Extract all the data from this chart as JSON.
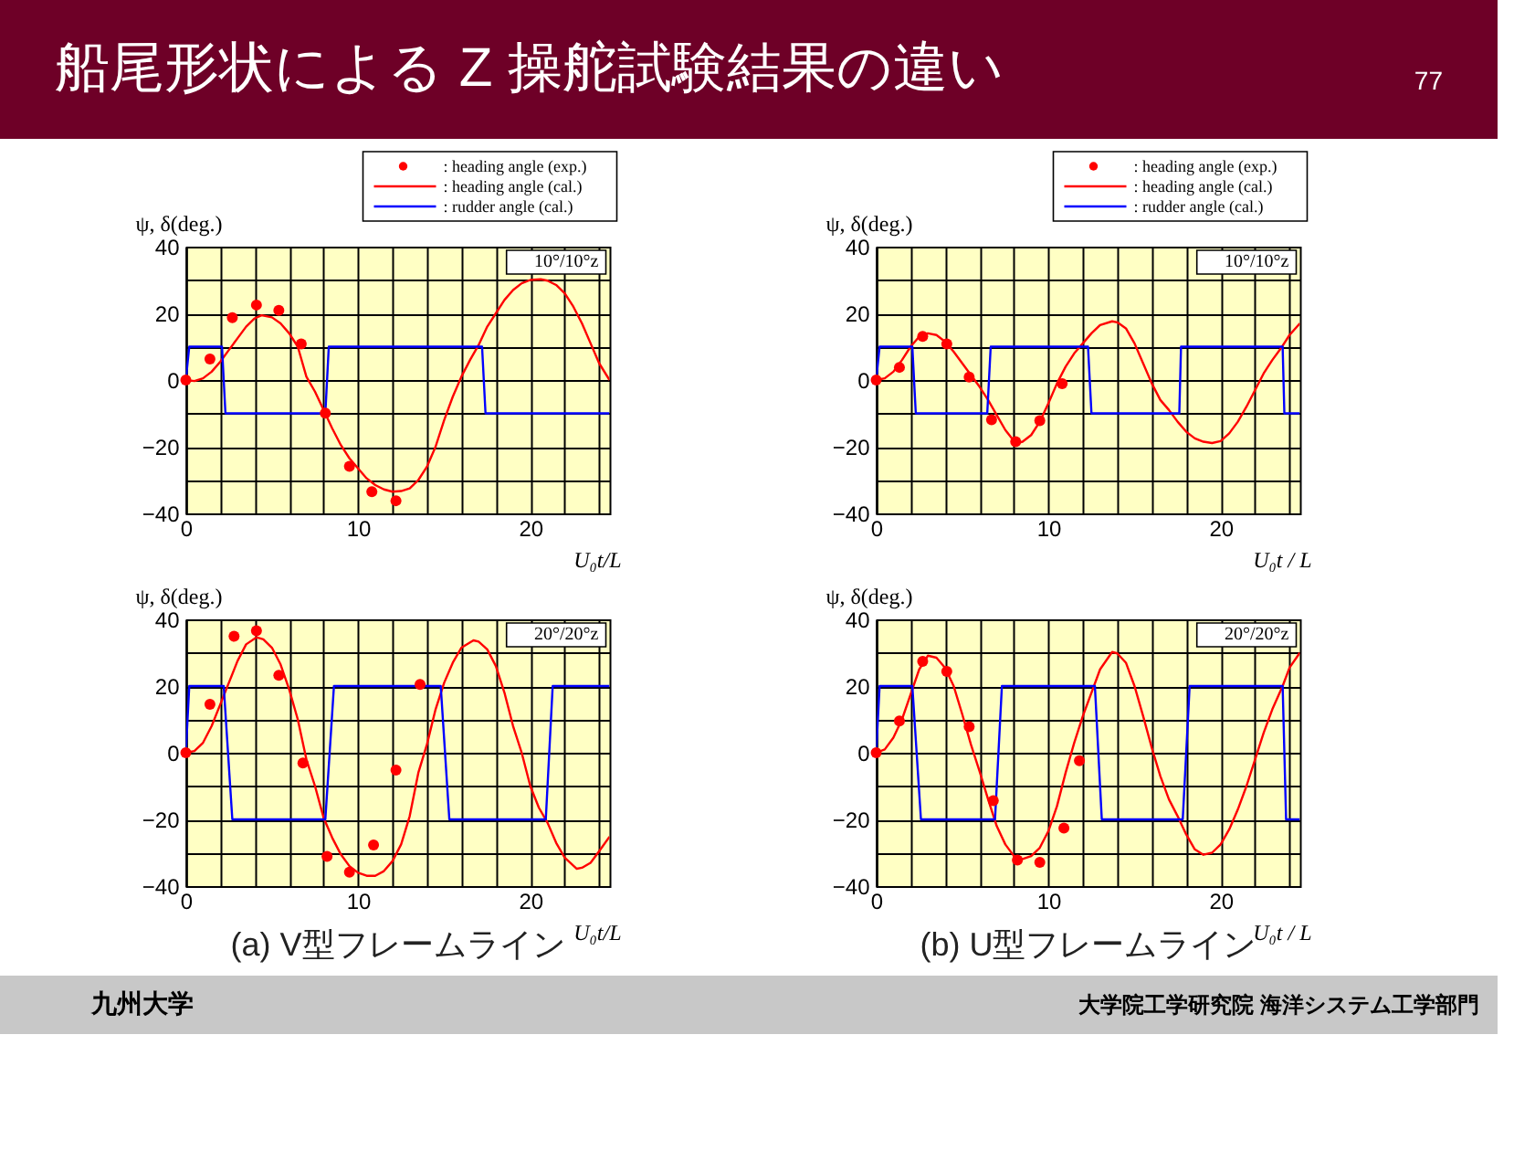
{
  "chart_data": [
    {
      "type": "line",
      "title": "船尾形状による Z 操舵試験結果の違い",
      "xlabel": "U₀t/L",
      "ylabel": "ψ, δ(deg.)",
      "xlim": [
        0,
        24.6
      ],
      "ylim": [
        -40,
        40
      ],
      "xticks": [
        0,
        {
          "value": 2,
          "label": null
        },
        {
          "value": 4,
          "label": null
        },
        {
          "value": 6,
          "label": null
        },
        {
          "value": 8,
          "label": null
        },
        10,
        {
          "value": 12,
          "label": null
        },
        {
          "value": 14,
          "label": null
        },
        {
          "value": 16,
          "label": null
        },
        {
          "value": 18,
          "label": null
        },
        20,
        {
          "value": 22,
          "label": null
        },
        {
          "value": 24,
          "label": null
        }
      ],
      "yticks": [
        -40,
        {
          "value": -30,
          "label": null
        },
        -20,
        {
          "value": -10,
          "label": null
        },
        0,
        {
          "value": 10,
          "label": null
        },
        20,
        {
          "value": 30,
          "label": null
        },
        40
      ],
      "grid": true,
      "legend": "top right",
      "annotations": [
        "10°/10°z",
        "77"
      ],
      "series": [
        {
          "name": ": heading angle (exp.)",
          "type": "scatter",
          "marker": "circle",
          "color": "#ff0000",
          "x": [
            0,
            1.4,
            2.7,
            4.1,
            5.4,
            6.7,
            8.1,
            9.5,
            10.8,
            12.2
          ],
          "values": [
            0,
            6.3,
            18.7,
            22.5,
            20.9,
            10.8,
            -9.9,
            -25.9,
            -33.5,
            -36.2
          ]
        },
        {
          "name": ": heading angle (cal.)",
          "type": "line",
          "color": "#ff0000",
          "x": [
            0,
            0.5,
            1,
            1.5,
            2,
            2.5,
            3,
            3.5,
            4,
            4.4,
            5,
            5.5,
            6,
            6.5,
            7,
            7.5,
            8,
            8.5,
            9,
            9.5,
            10,
            10.5,
            11,
            11.5,
            12,
            12.5,
            13,
            13.5,
            14,
            14.5,
            15,
            15.5,
            16,
            16.5,
            17,
            17.5,
            18,
            18.5,
            19,
            19.5,
            20,
            20.6,
            21,
            21.5,
            22,
            22.5,
            23,
            23.5,
            24,
            24.6
          ],
          "values": [
            0,
            -0.3,
            0.5,
            2.5,
            5.5,
            9,
            12.5,
            16,
            18.5,
            19.4,
            18.8,
            17,
            14,
            10,
            1,
            -3.5,
            -9,
            -14.5,
            -19.5,
            -23.5,
            -26.5,
            -29.5,
            -31.5,
            -32.8,
            -33.5,
            -33.3,
            -32.5,
            -30,
            -26,
            -20,
            -12,
            -5,
            1,
            6,
            10.5,
            16,
            20,
            24,
            27,
            29,
            30,
            30.2,
            29.8,
            28.5,
            26,
            22,
            17,
            11,
            5,
            0
          ]
        },
        {
          "name": ": rudder angle (cal.)",
          "type": "line",
          "color": "#0000ff",
          "x": [
            0,
            0.2,
            2.1,
            2.3,
            8.1,
            8.3,
            17.2,
            17.4,
            24.6
          ],
          "values": [
            0,
            10,
            10,
            -10,
            -10,
            10,
            10,
            -10,
            -10
          ]
        }
      ]
    },
    {
      "type": "line",
      "xlabel": "U₀t / L",
      "ylabel": "ψ, δ(deg.)",
      "xlim": [
        0,
        24.6
      ],
      "ylim": [
        -40,
        40
      ],
      "xticks": [
        0,
        {
          "value": 2,
          "label": null
        },
        {
          "value": 4,
          "label": null
        },
        {
          "value": 6,
          "label": null
        },
        {
          "value": 8,
          "label": null
        },
        10,
        {
          "value": 12,
          "label": null
        },
        {
          "value": 14,
          "label": null
        },
        {
          "value": 16,
          "label": null
        },
        {
          "value": 18,
          "label": null
        },
        20,
        {
          "value": 22,
          "label": null
        },
        {
          "value": 24,
          "label": null
        }
      ],
      "yticks": [
        -40,
        {
          "value": -30,
          "label": null
        },
        -20,
        {
          "value": -10,
          "label": null
        },
        0,
        {
          "value": 10,
          "label": null
        },
        20,
        {
          "value": 30,
          "label": null
        },
        40
      ],
      "grid": true,
      "legend": "top right",
      "annotations": [
        "10°/10°z"
      ],
      "series": [
        {
          "name": ": heading angle (exp.)",
          "type": "scatter",
          "marker": "circle",
          "color": "#ff0000",
          "x": [
            0,
            1.35,
            2.7,
            4.1,
            5.4,
            6.7,
            8.1,
            9.5,
            10.8
          ],
          "values": [
            0,
            3.8,
            13.1,
            10.8,
            0.9,
            -11.9,
            -18.5,
            -12.2,
            -1.1
          ]
        },
        {
          "name": ": heading angle (cal.)",
          "type": "line",
          "color": "#ff0000",
          "x": [
            0,
            0.5,
            1,
            1.5,
            2,
            2.5,
            3,
            3.5,
            4,
            4.5,
            5,
            5.5,
            6,
            6.5,
            7,
            7.5,
            8,
            8.2,
            8.5,
            9,
            9.5,
            10,
            10.5,
            11,
            11.5,
            12,
            12.5,
            13,
            13.7,
            14,
            14.5,
            15,
            15.5,
            16,
            16.5,
            17,
            17.5,
            18,
            18.5,
            19,
            19.5,
            20,
            20.5,
            21,
            21.5,
            22,
            22.5,
            23,
            23.5,
            24,
            24.6
          ],
          "values": [
            0,
            0.5,
            2.5,
            6,
            10,
            13,
            14,
            13.5,
            11.5,
            8.5,
            5,
            1.5,
            -2,
            -6,
            -10.5,
            -15,
            -18.3,
            -18.9,
            -18.5,
            -16.5,
            -12.5,
            -7,
            -1,
            4,
            8,
            11,
            14,
            16.5,
            17.6,
            17.3,
            15.5,
            11,
            5,
            -1,
            -6,
            -9,
            -12.5,
            -15.5,
            -17.5,
            -18.5,
            -18.9,
            -18.3,
            -16,
            -12.5,
            -8,
            -3,
            2,
            6,
            9.5,
            13.5,
            17
          ]
        },
        {
          "name": ": rudder angle (cal.)",
          "type": "line",
          "color": "#0000ff",
          "x": [
            0,
            0.2,
            2.1,
            2.3,
            6.45,
            6.65,
            12.3,
            12.5,
            17.6,
            17.7,
            23.6,
            23.7,
            24.6
          ],
          "values": [
            0,
            10,
            10,
            -10,
            -10,
            10,
            10,
            -10,
            -10,
            10,
            10,
            -10,
            -10
          ]
        }
      ]
    },
    {
      "type": "line",
      "xlabel": "U₀t/L",
      "ylabel": "ψ, δ(deg.)",
      "xlim": [
        0,
        24.6
      ],
      "ylim": [
        -40,
        40
      ],
      "xticks": [
        0,
        {
          "value": 2,
          "label": null
        },
        {
          "value": 4,
          "label": null
        },
        {
          "value": 6,
          "label": null
        },
        {
          "value": 8,
          "label": null
        },
        10,
        {
          "value": 12,
          "label": null
        },
        {
          "value": 14,
          "label": null
        },
        {
          "value": 16,
          "label": null
        },
        {
          "value": 18,
          "label": null
        },
        20,
        {
          "value": 22,
          "label": null
        },
        {
          "value": 24,
          "label": null
        }
      ],
      "yticks": [
        -40,
        {
          "value": -30,
          "label": null
        },
        -20,
        {
          "value": -10,
          "label": null
        },
        0,
        {
          "value": 10,
          "label": null
        },
        20,
        {
          "value": 30,
          "label": null
        },
        40
      ],
      "grid": true,
      "annotations": [
        "20°/20°z",
        "(a) V型フレームライン"
      ],
      "series": [
        {
          "type": "scatter",
          "marker": "circle",
          "color": "#ff0000",
          "x": [
            0,
            1.4,
            2.8,
            4.1,
            5.4,
            6.8,
            8.2,
            9.5,
            10.9,
            12.2,
            13.6
          ],
          "values": [
            0,
            14.5,
            34.9,
            36.6,
            23.2,
            -3.1,
            -31.1,
            -35.8,
            -27.7,
            -5.2,
            20.5
          ]
        },
        {
          "type": "line",
          "color": "#ff0000",
          "x": [
            0,
            0.5,
            1,
            1.5,
            2,
            2.5,
            3,
            3.5,
            4.1,
            4.5,
            5,
            5.5,
            6,
            6.5,
            7,
            7.5,
            8,
            8.5,
            9,
            9.5,
            10,
            10.5,
            11,
            11.5,
            12,
            12.5,
            13,
            13.5,
            14,
            14.5,
            15,
            15.5,
            16,
            16.7,
            17,
            17.5,
            18,
            18.5,
            19,
            19.5,
            20,
            20.5,
            21,
            21.5,
            22,
            22.7,
            23,
            23.5,
            24,
            24.6
          ],
          "values": [
            0,
            0.5,
            3,
            8,
            14.5,
            21,
            27.5,
            32.5,
            34.6,
            34,
            31.5,
            26.5,
            19,
            10,
            -2,
            -10,
            -19.5,
            -25.5,
            -30.5,
            -34,
            -36,
            -36.9,
            -36.9,
            -35.5,
            -32.5,
            -27.5,
            -19,
            -6,
            2.5,
            13,
            21,
            27,
            31.5,
            33.7,
            33.3,
            31,
            26,
            18,
            8,
            0,
            -10,
            -16.5,
            -21,
            -27,
            -31.5,
            -34.8,
            -34.5,
            -33,
            -29.5,
            -25.2
          ]
        },
        {
          "type": "line",
          "color": "#0000ff",
          "x": [
            0,
            0.2,
            2.2,
            2.7,
            8.1,
            8.6,
            14.8,
            15.3,
            20.9,
            21.3,
            24.6
          ],
          "values": [
            0,
            20,
            20,
            -20,
            -20,
            20,
            20,
            -20,
            -20,
            20,
            20
          ]
        }
      ]
    },
    {
      "type": "line",
      "xlabel": "U₀t / L",
      "ylabel": "ψ, δ(deg.)",
      "xlim": [
        0,
        24.6
      ],
      "ylim": [
        -40,
        40
      ],
      "xticks": [
        0,
        {
          "value": 2,
          "label": null
        },
        {
          "value": 4,
          "label": null
        },
        {
          "value": 6,
          "label": null
        },
        {
          "value": 8,
          "label": null
        },
        10,
        {
          "value": 12,
          "label": null
        },
        {
          "value": 14,
          "label": null
        },
        {
          "value": 16,
          "label": null
        },
        {
          "value": 18,
          "label": null
        },
        20,
        {
          "value": 22,
          "label": null
        },
        {
          "value": 24,
          "label": null
        }
      ],
      "yticks": [
        -40,
        {
          "value": -30,
          "label": null
        },
        -20,
        {
          "value": -10,
          "label": null
        },
        0,
        {
          "value": 10,
          "label": null
        },
        20,
        {
          "value": 30,
          "label": null
        },
        40
      ],
      "grid": true,
      "annotations": [
        "20°/20°z",
        "(b) U型フレームライン",
        "九州大学",
        "大学院工学研究院 海洋システム工学部門"
      ],
      "series": [
        {
          "type": "scatter",
          "marker": "circle",
          "color": "#ff0000",
          "x": [
            0,
            1.35,
            2.7,
            4.1,
            5.4,
            6.8,
            8.2,
            9.5,
            10.9,
            11.8
          ],
          "values": [
            0,
            9.5,
            27.4,
            24.4,
            7.8,
            -14.4,
            -32.2,
            -32.9,
            -22.6,
            -2.4
          ]
        },
        {
          "type": "line",
          "color": "#ff0000",
          "x": [
            0,
            0.5,
            1,
            1.5,
            2,
            2.5,
            3,
            3.5,
            4,
            4.5,
            5,
            5.5,
            6,
            6.5,
            7,
            7.5,
            8,
            8.5,
            9,
            9.5,
            10,
            10.5,
            11,
            11.5,
            12,
            12.5,
            13,
            13.7,
            14,
            14.5,
            15,
            15.5,
            16,
            16.5,
            17,
            17.5,
            18,
            18.5,
            19,
            19.5,
            20,
            20.5,
            21,
            21.5,
            22,
            22.5,
            23,
            23.6,
            24,
            24.6
          ],
          "values": [
            0,
            1,
            4.5,
            10,
            17.5,
            25,
            29.1,
            28.5,
            25.5,
            20,
            11.5,
            2.5,
            -5.5,
            -14,
            -22,
            -27.5,
            -31,
            -31.9,
            -31,
            -28.5,
            -23.5,
            -16,
            -6,
            3,
            11,
            18,
            25,
            30.2,
            29.8,
            27,
            20,
            11,
            1.5,
            -7,
            -14,
            -19,
            -24.5,
            -29,
            -30.6,
            -30,
            -27.5,
            -23,
            -17,
            -10,
            -2,
            6,
            13,
            20,
            25.5,
            30
          ]
        },
        {
          "type": "line",
          "color": "#0000ff",
          "x": [
            0,
            0.2,
            2.1,
            2.6,
            6.9,
            7.3,
            12.7,
            13.1,
            17.8,
            18.2,
            23.6,
            23.8,
            24.6
          ],
          "values": [
            0,
            20,
            20,
            -20,
            -20,
            20,
            20,
            -20,
            -20,
            20,
            20,
            -20,
            -20
          ]
        }
      ]
    }
  ]
}
